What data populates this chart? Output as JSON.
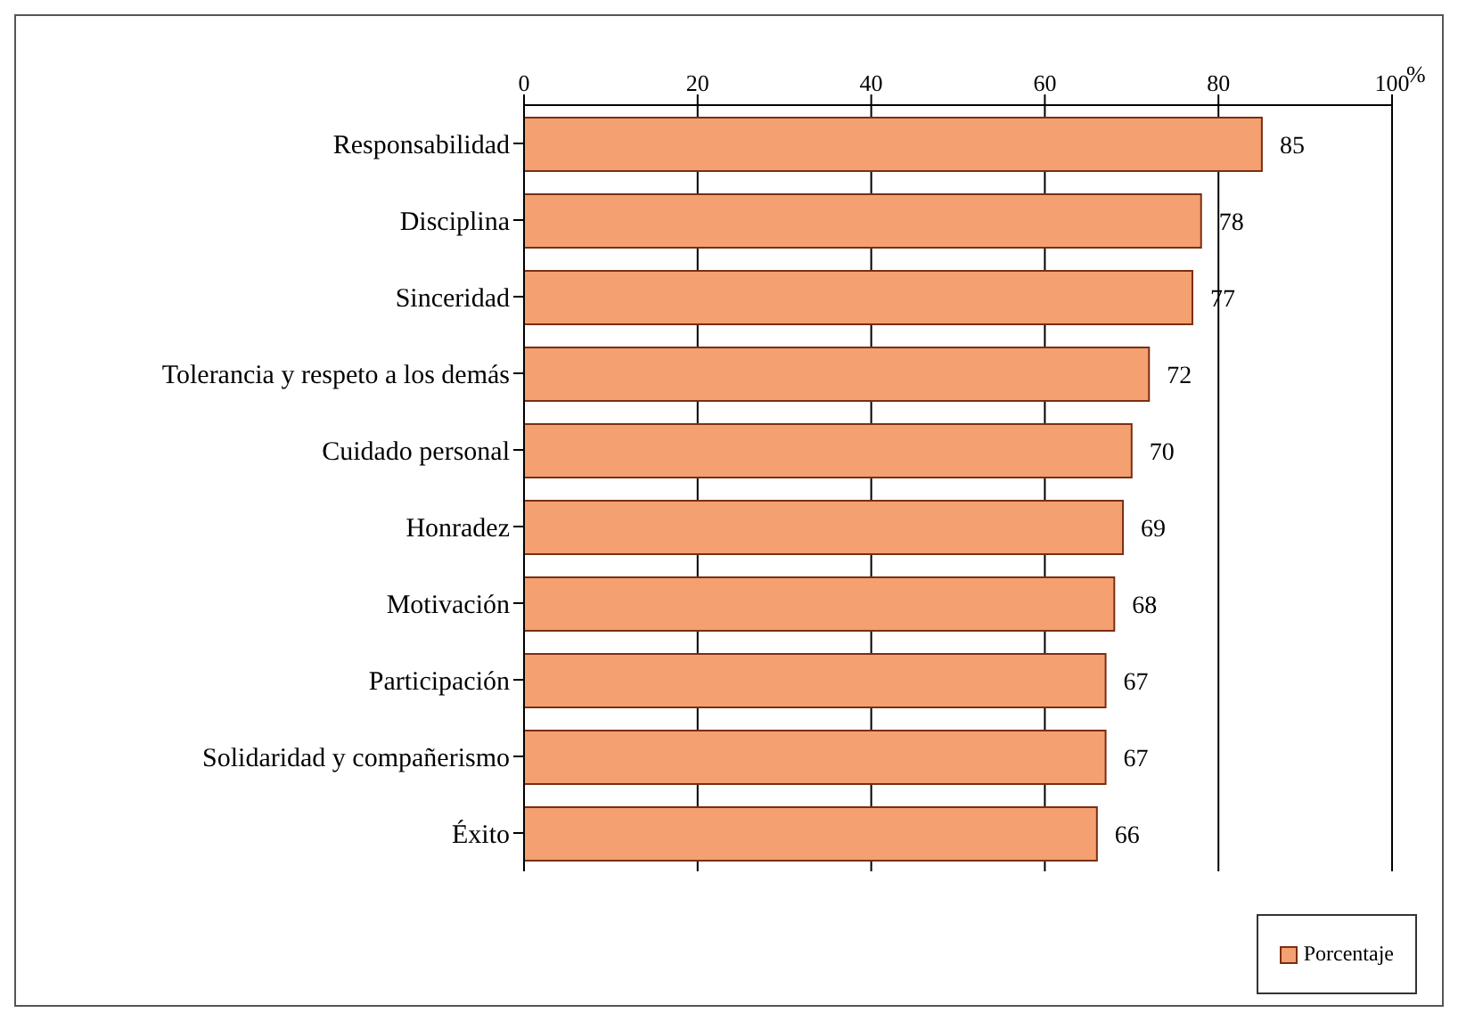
{
  "chart_data": {
    "type": "bar",
    "orientation": "horizontal",
    "xlabel": "%",
    "categories": [
      "Responsabilidad",
      "Disciplina",
      "Sinceridad",
      "Tolerancia y respeto a los demás",
      "Cuidado personal",
      "Honradez",
      "Motivación",
      "Participación",
      "Solidaridad y compañerismo",
      "Éxito"
    ],
    "series": [
      {
        "name": "Porcentaje",
        "color": "#f4a070",
        "values": [
          85,
          78,
          77,
          72,
          70,
          69,
          68,
          67,
          67,
          66
        ]
      }
    ],
    "xlim": [
      0,
      100
    ],
    "xticks": [
      0,
      20,
      40,
      60,
      80,
      100
    ],
    "grid": "x",
    "legend": "bottom right",
    "data_labels": true
  }
}
